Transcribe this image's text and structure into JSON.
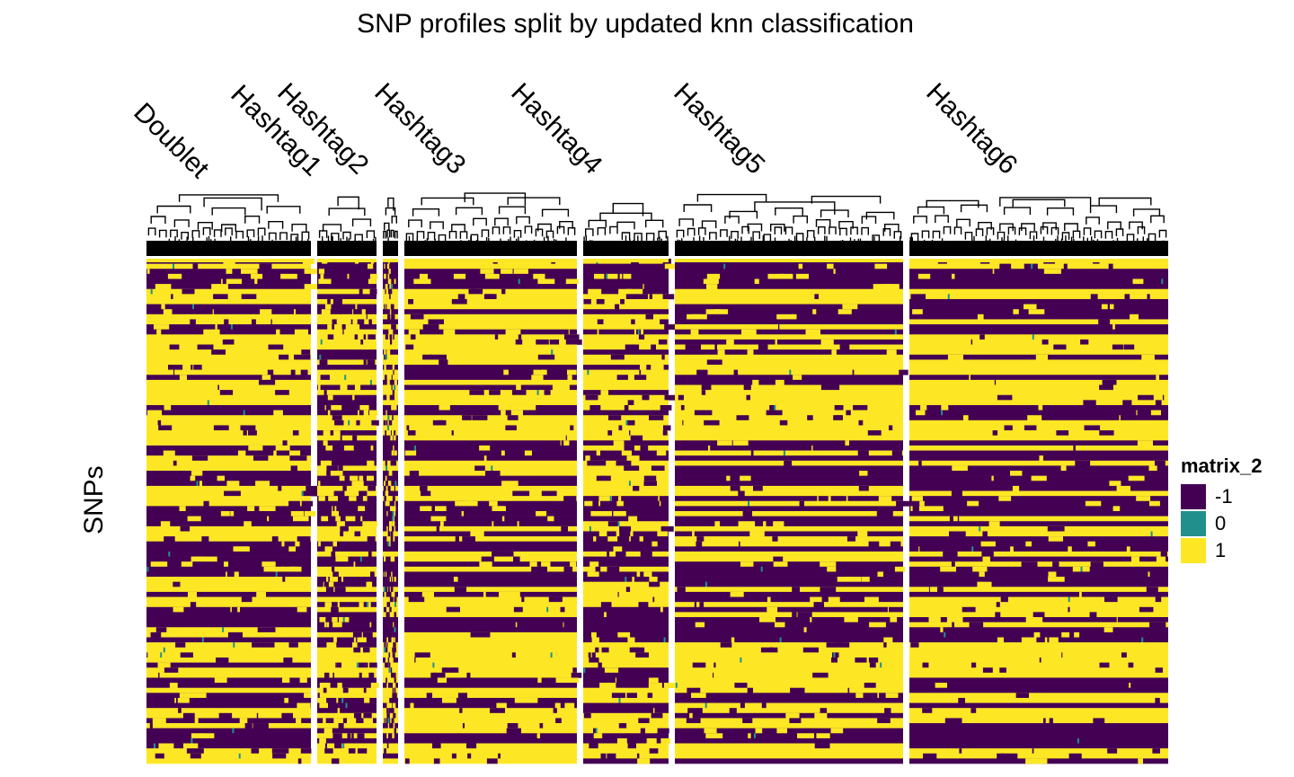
{
  "chart_data": {
    "type": "heatmap",
    "title": "SNP profiles split by updated knn classification",
    "ylabel": "SNPs",
    "column_groups": [
      "Doublet",
      "Hashtag1",
      "Hashtag2",
      "Hashtag3",
      "Hashtag4",
      "Hashtag5",
      "Hashtag6"
    ],
    "legend": {
      "title": "matrix_2",
      "placement": "right",
      "entries": [
        {
          "label": "-1",
          "color": "#440154"
        },
        {
          "label": "0",
          "color": "#21908C"
        },
        {
          "label": "1",
          "color": "#FDE725"
        }
      ]
    },
    "grid": false
  }
}
